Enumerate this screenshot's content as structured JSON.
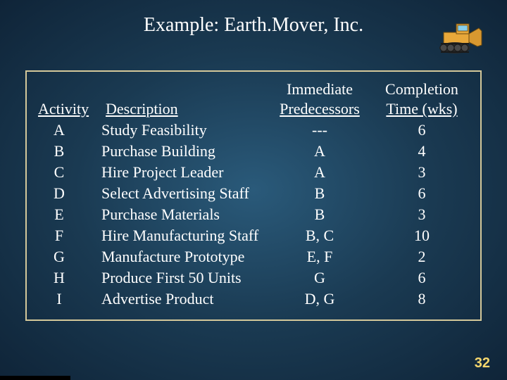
{
  "title": "Example:  Earth.Mover, Inc.",
  "headers": {
    "immediate": "Immediate",
    "completion": "Completion",
    "activity": "Activity",
    "description": "Description",
    "predecessors": "Predecessors",
    "time": "Time (wks)"
  },
  "rows": [
    {
      "activity": "A",
      "description": "Study Feasibility",
      "predecessors": "---",
      "time": "6"
    },
    {
      "activity": "B",
      "description": "Purchase Building",
      "predecessors": "A",
      "time": "4"
    },
    {
      "activity": "C",
      "description": "Hire Project Leader",
      "predecessors": "A",
      "time": "3"
    },
    {
      "activity": "D",
      "description": "Select Advertising Staff",
      "predecessors": "B",
      "time": "6"
    },
    {
      "activity": "E",
      "description": "Purchase Materials",
      "predecessors": "B",
      "time": "3"
    },
    {
      "activity": "F",
      "description": "Hire Manufacturing Staff",
      "predecessors": "B, C",
      "time": "10"
    },
    {
      "activity": "G",
      "description": "Manufacture Prototype",
      "predecessors": "E, F",
      "time": "2"
    },
    {
      "activity": "H",
      "description": "Produce First 50 Units",
      "predecessors": "G",
      "time": "6"
    },
    {
      "activity": "I",
      "description": "Advertise Product",
      "predecessors": "D, G",
      "time": "8"
    }
  ],
  "pagenum": "32",
  "colors": {
    "border": "#d4c89a",
    "pagenum": "#f5d76e",
    "text": "#ffffff"
  }
}
